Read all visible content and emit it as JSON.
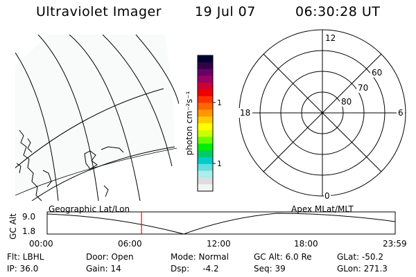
{
  "header": {
    "instrument": "Ultraviolet Imager",
    "date": "19 Jul 07",
    "time": "06:30:28 UT"
  },
  "map_panel": {
    "name": "geographic-map",
    "label": "Geographic Lat/Lon"
  },
  "colorbar": {
    "unit_label": "photon cm⁻²s⁻¹",
    "ticks": [
      "100",
      "10"
    ],
    "colors": [
      "#000033",
      "#330044",
      "#660066",
      "#990066",
      "#cc0033",
      "#ee0000",
      "#ff3300",
      "#ff6600",
      "#ff9900",
      "#ffcc00",
      "#ffff00",
      "#ccff00",
      "#66ff00",
      "#00ee00",
      "#00cc66",
      "#00cccc",
      "#66dddd",
      "#aaeeee",
      "#dddddd",
      "#f4f4f4"
    ]
  },
  "polar_panel": {
    "label": "Apex  MLat/MLT",
    "mlt_labels": {
      "top": "12",
      "left": "18",
      "right": "6",
      "bottom": "0"
    },
    "lat_labels": [
      "60",
      "70",
      "80"
    ]
  },
  "timeline": {
    "y_label": "GC Alt",
    "y_ticks": [
      "9.0",
      "1.8"
    ],
    "x_ticks": [
      "00:00",
      "06:00",
      "12:00",
      "18:00",
      "23:59"
    ],
    "current_time_hours": 6.508,
    "current_marker_color": "#ff0000"
  },
  "info": {
    "row1": [
      {
        "key": "filter",
        "text": "Flt: LBHL"
      },
      {
        "key": "door",
        "text": "Door: Open"
      },
      {
        "key": "mode",
        "text": "Mode: Normal"
      },
      {
        "key": "gc_alt",
        "text": "GC Alt: 6.0 Re"
      },
      {
        "key": "glat",
        "text": "GLat: -50.2"
      }
    ],
    "row2": [
      {
        "key": "ip",
        "text": "IP: 36.0"
      },
      {
        "key": "gain",
        "text": "Gain: 14"
      },
      {
        "key": "dsp",
        "text": "Dsp:     -4.2"
      },
      {
        "key": "seq",
        "text": "Seq: 39"
      },
      {
        "key": "glon",
        "text": "GLon: 271.3"
      }
    ]
  }
}
